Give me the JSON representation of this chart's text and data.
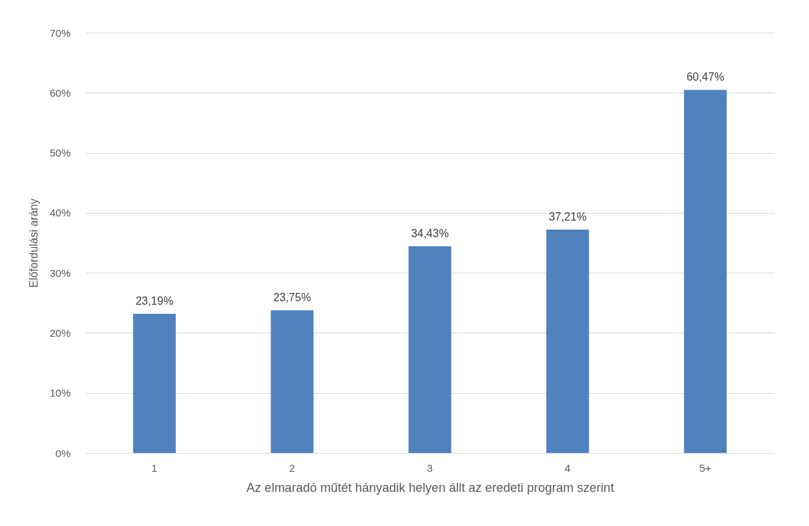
{
  "chart_data": {
    "type": "bar",
    "xlabel": "Az elmaradó műtét hányadik helyen állt az eredeti program szerint",
    "ylabel": "Előfordulási arány",
    "categories": [
      "1",
      "2",
      "3",
      "4",
      "5+"
    ],
    "values": [
      23.19,
      23.75,
      34.43,
      37.21,
      60.47
    ],
    "value_labels": [
      "23,19%",
      "23,75%",
      "34,43%",
      "37,21%",
      "60,47%"
    ],
    "color": "#4f81bd",
    "ylim": [
      0,
      70
    ],
    "yticks": [
      {
        "value": 0,
        "label": "0%"
      },
      {
        "value": 10,
        "label": "10%"
      },
      {
        "value": 20,
        "label": "20%"
      },
      {
        "value": 30,
        "label": "30%"
      },
      {
        "value": 40,
        "label": "40%"
      },
      {
        "value": 50,
        "label": "50%"
      },
      {
        "value": 60,
        "label": "60%"
      },
      {
        "value": 70,
        "label": "70%"
      }
    ],
    "grid": "y"
  }
}
